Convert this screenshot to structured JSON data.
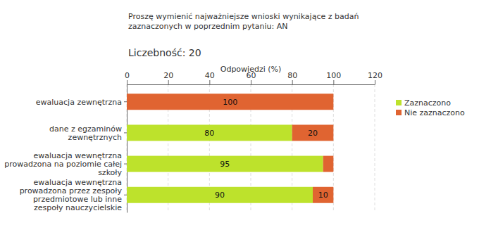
{
  "chart_data": {
    "type": "bar",
    "orientation": "horizontal",
    "stacked": true,
    "title": "Proszę wymienić najważniejsze wnioski wynikające z badań zaznaczonych w poprzednim pytaniu: AN",
    "subtitle": "Liczebność: 20",
    "x_label": "Odpowiedzi (%)",
    "categories": [
      "ewaluacja zewnętrzna",
      "dane z egzaminów zewnętrznych",
      "ewaluacja wewnętrzna prowadzona na poziomie całej szkoły",
      "ewaluacja wewnętrzna prowadzona przez zespoły przedmiotowe lub inne zespoły nauczycielskie"
    ],
    "series": [
      {
        "name": "Zaznaczono",
        "color": "#bde22c",
        "values": [
          0,
          80,
          95,
          90
        ],
        "value_labels": [
          null,
          "80",
          "95",
          "90"
        ]
      },
      {
        "name": "Nie zaznaczono",
        "color": "#e06431",
        "values": [
          100,
          20,
          5,
          10
        ],
        "value_labels": [
          "100",
          "20",
          null,
          "10"
        ]
      }
    ],
    "xlim": [
      0,
      120
    ],
    "xticks": [
      0,
      20,
      40,
      60,
      80,
      100,
      120
    ],
    "grid": true,
    "data_labels": true,
    "legend": "right"
  }
}
